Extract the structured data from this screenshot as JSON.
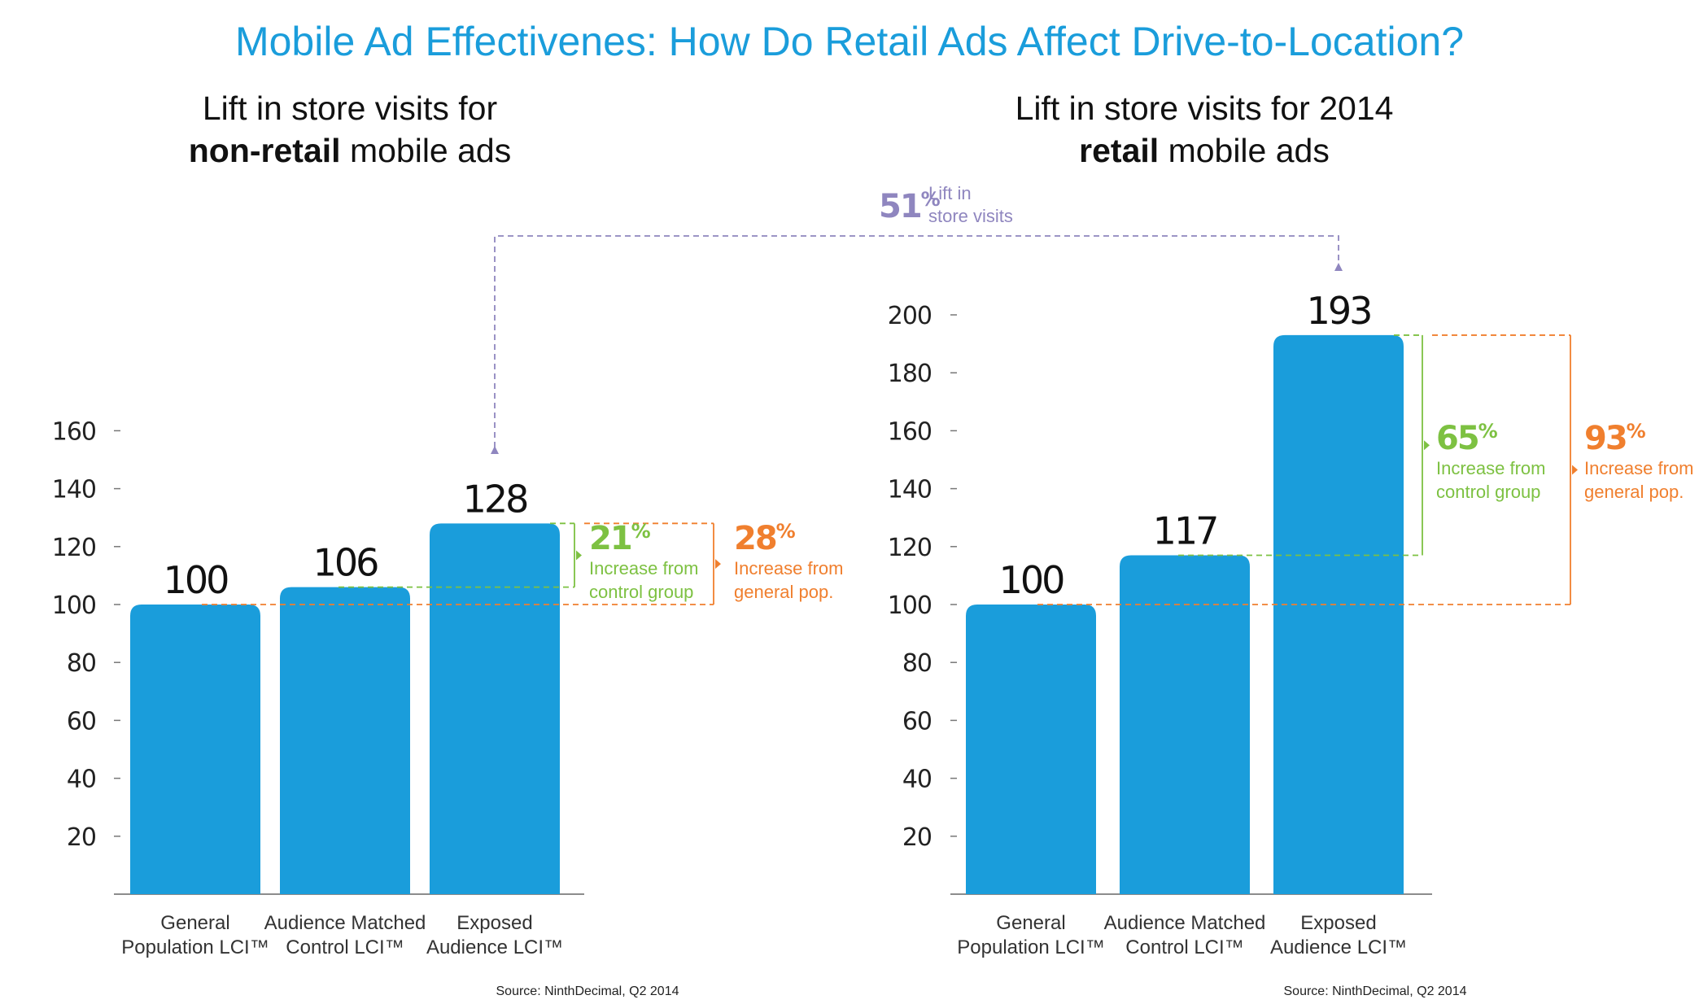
{
  "title": "Mobile Ad Effectivenes: How Do Retail Ads Affect Drive-to-Location?",
  "connector": {
    "pct": "51",
    "pct_sign": "%",
    "line1": "Lift in",
    "line2": "store visits"
  },
  "colors": {
    "bar": "#1a9ddb",
    "green": "#7dc142",
    "orange": "#f07f2e",
    "purple": "#8f86bf",
    "title": "#1a9ddb",
    "axis": "#555555"
  },
  "chart_data": [
    {
      "type": "bar",
      "subtitle_pre": "Lift in store visits for",
      "subtitle_bold": "non-retail",
      "subtitle_post": "mobile ads",
      "categories": [
        [
          "General",
          "Population LCI™"
        ],
        [
          "Audience Matched",
          "Control LCI™"
        ],
        [
          "Exposed",
          "Audience LCI™"
        ]
      ],
      "values": [
        100,
        106,
        128
      ],
      "value_labels": [
        "100",
        "106",
        "128"
      ],
      "yticks": [
        20,
        40,
        60,
        80,
        100,
        120,
        140,
        160
      ],
      "ylim": [
        0,
        160
      ],
      "green_annotation": {
        "pct": "21",
        "sign": "%",
        "line1": "Increase from",
        "line2": "control group"
      },
      "orange_annotation": {
        "pct": "28",
        "sign": "%",
        "line1": "Increase from",
        "line2": "general pop."
      },
      "source": "Source: NinthDecimal, Q2 2014"
    },
    {
      "type": "bar",
      "subtitle_pre": "Lift in store visits for 2014",
      "subtitle_bold": "retail",
      "subtitle_post": "mobile ads",
      "categories": [
        [
          "General",
          "Population LCI™"
        ],
        [
          "Audience Matched",
          "Control LCI™"
        ],
        [
          "Exposed",
          "Audience LCI™"
        ]
      ],
      "values": [
        100,
        117,
        193
      ],
      "value_labels": [
        "100",
        "117",
        "193"
      ],
      "yticks": [
        20,
        40,
        60,
        80,
        100,
        120,
        140,
        160,
        180,
        200
      ],
      "ylim": [
        0,
        200
      ],
      "green_annotation": {
        "pct": "65",
        "sign": "%",
        "line1": "Increase from",
        "line2": "control group"
      },
      "orange_annotation": {
        "pct": "93",
        "sign": "%",
        "line1": "Increase from",
        "line2": "general pop."
      },
      "source": "Source: NinthDecimal, Q2 2014"
    }
  ]
}
